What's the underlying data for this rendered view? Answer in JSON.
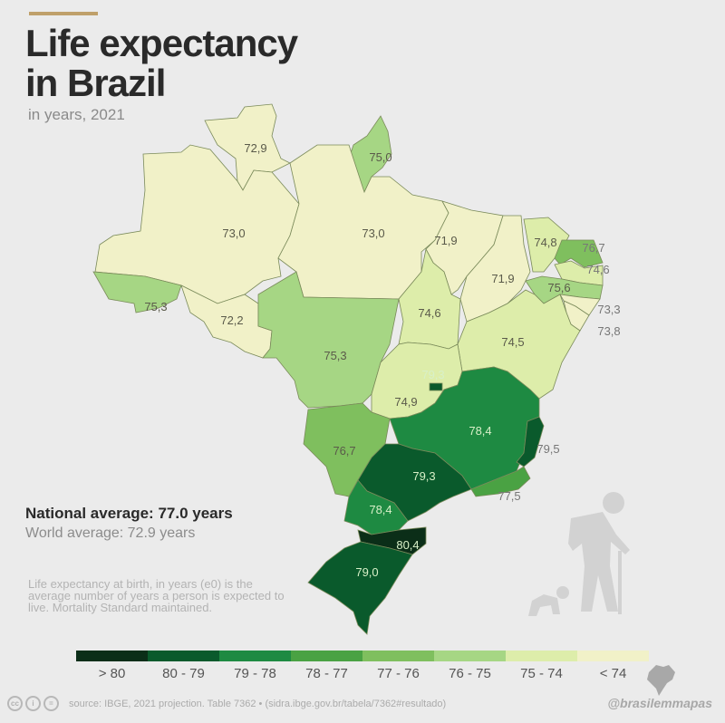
{
  "header": {
    "title_line1": "Life expectancy",
    "title_line2": "in Brazil",
    "subtitle": "in years, 2021"
  },
  "chart_data": {
    "type": "choropleth",
    "title": "Life expectancy in Brazil",
    "subtitle": "in years, 2021",
    "units": "years",
    "regions": [
      {
        "state": "Roraima",
        "value": 72.9,
        "label": "72,9"
      },
      {
        "state": "Amapá",
        "value": 75.0,
        "label": "75,0"
      },
      {
        "state": "Amazonas",
        "value": 73.0,
        "label": "73,0"
      },
      {
        "state": "Pará",
        "value": 73.0,
        "label": "73,0"
      },
      {
        "state": "Acre",
        "value": 75.3,
        "label": "75,3"
      },
      {
        "state": "Rondônia",
        "value": 72.2,
        "label": "72,2"
      },
      {
        "state": "Mato Grosso",
        "value": 75.3,
        "label": "75,3"
      },
      {
        "state": "Maranhão",
        "value": 71.9,
        "label": "71,9"
      },
      {
        "state": "Piauí",
        "value": 71.9,
        "label": "71,9"
      },
      {
        "state": "Ceará",
        "value": 74.8,
        "label": "74,8"
      },
      {
        "state": "Rio Grande do Norte",
        "value": 76.7,
        "label": "76,7"
      },
      {
        "state": "Paraíba",
        "value": 74.6,
        "label": "74,6"
      },
      {
        "state": "Pernambuco",
        "value": 75.6,
        "label": "75,6"
      },
      {
        "state": "Alagoas",
        "value": 73.3,
        "label": "73,3"
      },
      {
        "state": "Sergipe",
        "value": 73.8,
        "label": "73,8"
      },
      {
        "state": "Bahia",
        "value": 74.5,
        "label": "74,5"
      },
      {
        "state": "Tocantins",
        "value": 74.6,
        "label": "74,6"
      },
      {
        "state": "Goiás",
        "value": 74.9,
        "label": "74,9"
      },
      {
        "state": "Distrito Federal",
        "value": 79.3,
        "label": "79,3"
      },
      {
        "state": "Mato Grosso do Sul",
        "value": 76.7,
        "label": "76,7"
      },
      {
        "state": "Minas Gerais",
        "value": 78.4,
        "label": "78,4"
      },
      {
        "state": "Espírito Santo",
        "value": 79.5,
        "label": "79,5"
      },
      {
        "state": "Rio de Janeiro",
        "value": 77.5,
        "label": "77,5"
      },
      {
        "state": "São Paulo",
        "value": 79.3,
        "label": "79,3"
      },
      {
        "state": "Paraná",
        "value": 78.4,
        "label": "78,4"
      },
      {
        "state": "Santa Catarina",
        "value": 80.4,
        "label": "80,4"
      },
      {
        "state": "Rio Grande do Sul",
        "value": 79.0,
        "label": "79,0"
      }
    ],
    "legend": [
      {
        "label": "> 80",
        "min": 80,
        "max": 100,
        "color": "#0b2e18"
      },
      {
        "label": "80 - 79",
        "min": 79,
        "max": 80,
        "color": "#0a5a2c"
      },
      {
        "label": "79 - 78",
        "min": 78,
        "max": 79,
        "color": "#1e8a42"
      },
      {
        "label": "78 - 77",
        "min": 77,
        "max": 78,
        "color": "#4aa243"
      },
      {
        "label": "77 - 76",
        "min": 76,
        "max": 77,
        "color": "#7fbf5e"
      },
      {
        "label": "76 - 75",
        "min": 75,
        "max": 76,
        "color": "#a6d684"
      },
      {
        "label": "75 - 74",
        "min": 74,
        "max": 75,
        "color": "#ddedaa"
      },
      {
        "label": "< 74",
        "min": 0,
        "max": 74,
        "color": "#f1f1c8"
      }
    ],
    "legend_placement": "bottom"
  },
  "stats": {
    "national_average": "National average: 77.0 years",
    "world_average": "World average: 72.9 years"
  },
  "note": "Life expectancy at birth, in years (e0) is the average number of years a person is expected to live. Mortality Standard maintained.",
  "footer": {
    "license_icons": [
      "cc",
      "by",
      "nd"
    ],
    "license_glyphs": {
      "cc": "cc",
      "by": "i",
      "nd": "="
    },
    "source": "source: IBGE, 2021 projection. Table 7362 • (sidra.ibge.gov.br/tabela/7362#resultado)",
    "handle": "@brasilemmapas"
  }
}
